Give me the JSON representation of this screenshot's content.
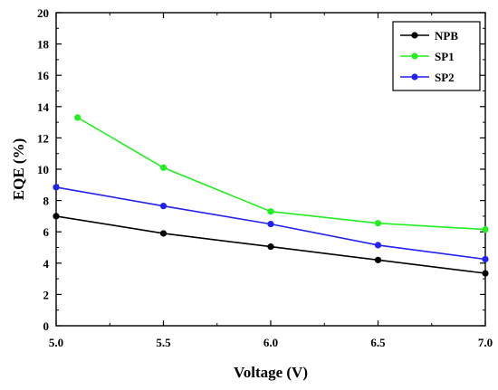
{
  "chart_data": {
    "type": "line",
    "title": "",
    "xlabel": "Voltage (V)",
    "ylabel": "EQE (%)",
    "xlim": [
      5.0,
      7.0
    ],
    "ylim": [
      0,
      20
    ],
    "x_ticks": [
      "5.0",
      "5.5",
      "6.0",
      "6.5",
      "7.0"
    ],
    "y_ticks": [
      "0",
      "2",
      "4",
      "6",
      "8",
      "10",
      "12",
      "14",
      "16",
      "18",
      "20"
    ],
    "grid": false,
    "legend_position": "top-right",
    "series": [
      {
        "name": "NPB",
        "color": "#000000",
        "x": [
          5.0,
          5.5,
          6.0,
          6.5,
          7.0
        ],
        "y": [
          7.0,
          5.9,
          5.05,
          4.2,
          3.35
        ]
      },
      {
        "name": "SP1",
        "color": "#22ee22",
        "x": [
          5.1,
          5.5,
          6.0,
          6.5,
          7.0
        ],
        "y": [
          13.3,
          10.1,
          7.3,
          6.55,
          6.15
        ]
      },
      {
        "name": "SP2",
        "color": "#2222ee",
        "x": [
          5.0,
          5.5,
          6.0,
          6.5,
          7.0
        ],
        "y": [
          8.85,
          7.65,
          6.5,
          5.15,
          4.25
        ]
      }
    ]
  }
}
